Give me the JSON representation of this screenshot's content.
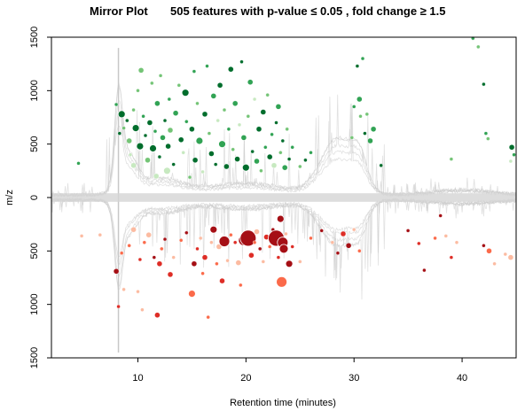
{
  "chart_data": {
    "type": "scatter",
    "title_left": "Mirror Plot",
    "title_right": "505 features with p-value ≤ 0.05 , fold change ≥ 1.5",
    "xlabel": "Retention time (minutes)",
    "ylabel": "m/z",
    "xlim": [
      2,
      45
    ],
    "ylim": [
      -1500,
      1500
    ],
    "x_ticks": [
      10,
      20,
      30,
      40
    ],
    "y_ticks": [
      {
        "value": 1500,
        "label": "1500"
      },
      {
        "value": 1000,
        "label": "1000"
      },
      {
        "value": 500,
        "label": "500"
      },
      {
        "value": 0,
        "label": "0"
      },
      {
        "value": -500,
        "label": "500"
      },
      {
        "value": -1000,
        "label": "1000"
      },
      {
        "value": -1500,
        "label": "1500"
      }
    ],
    "colors": {
      "up_dark": "#006d2c",
      "up_mid": "#31a354",
      "up_light": "#74c476",
      "up_pale": "#c7e9c0",
      "down_dark": "#a50f15",
      "down_mid": "#de2d26",
      "down_light": "#fb6a4a",
      "down_pale": "#fcbba1",
      "tic_gray": "#c8c8c8"
    },
    "series": [
      {
        "group": "up",
        "points": [
          [
            4.5,
            320,
            2,
            "up_mid"
          ],
          [
            8.0,
            870,
            2,
            "up_mid"
          ],
          [
            8.3,
            600,
            2,
            "up_dark"
          ],
          [
            8.5,
            780,
            4,
            "up_dark"
          ],
          [
            8.7,
            650,
            2,
            "up_light"
          ],
          [
            9.0,
            720,
            2,
            "up_dark"
          ],
          [
            9.2,
            530,
            3,
            "up_light"
          ],
          [
            9.3,
            400,
            2,
            "up_pale"
          ],
          [
            9.6,
            820,
            2,
            "up_light"
          ],
          [
            9.6,
            300,
            3,
            "up_pale"
          ],
          [
            9.8,
            650,
            4,
            "up_dark"
          ],
          [
            10.0,
            1000,
            2,
            "up_light"
          ],
          [
            10.2,
            480,
            4,
            "up_dark"
          ],
          [
            10.3,
            1190,
            3,
            "up_light"
          ],
          [
            10.5,
            760,
            2,
            "up_mid"
          ],
          [
            10.7,
            580,
            2,
            "up_dark"
          ],
          [
            10.9,
            350,
            3,
            "up_light"
          ],
          [
            11.1,
            700,
            3,
            "up_dark"
          ],
          [
            11.3,
            1070,
            2,
            "up_light"
          ],
          [
            11.4,
            460,
            4,
            "up_dark"
          ],
          [
            11.6,
            620,
            2,
            "up_mid"
          ],
          [
            11.7,
            200,
            3,
            "up_pale"
          ],
          [
            11.8,
            880,
            3,
            "up_mid"
          ],
          [
            12.0,
            380,
            2,
            "up_dark"
          ],
          [
            12.1,
            1140,
            2,
            "up_light"
          ],
          [
            12.3,
            560,
            3,
            "up_mid"
          ],
          [
            12.5,
            720,
            2,
            "up_dark"
          ],
          [
            12.7,
            250,
            4,
            "up_pale"
          ],
          [
            12.8,
            480,
            3,
            "up_dark"
          ],
          [
            12.9,
            920,
            2,
            "up_mid"
          ],
          [
            13.0,
            630,
            3,
            "up_light"
          ],
          [
            13.3,
            310,
            2,
            "up_dark"
          ],
          [
            13.5,
            790,
            3,
            "up_mid"
          ],
          [
            13.8,
            1050,
            2,
            "up_light"
          ],
          [
            14.0,
            540,
            3,
            "up_dark"
          ],
          [
            14.2,
            420,
            2,
            "up_pale"
          ],
          [
            14.4,
            980,
            4,
            "up_dark"
          ],
          [
            14.5,
            710,
            2,
            "up_mid"
          ],
          [
            14.8,
            190,
            2,
            "up_light"
          ],
          [
            15.0,
            640,
            3,
            "up_dark"
          ],
          [
            15.2,
            1180,
            2,
            "up_mid"
          ],
          [
            15.3,
            350,
            3,
            "up_dark"
          ],
          [
            15.5,
            880,
            2,
            "up_light"
          ],
          [
            15.7,
            530,
            4,
            "up_mid"
          ],
          [
            16.0,
            240,
            2,
            "up_pale"
          ],
          [
            16.2,
            780,
            3,
            "up_dark"
          ],
          [
            16.4,
            1230,
            2,
            "up_mid"
          ],
          [
            16.6,
            600,
            2,
            "up_light"
          ],
          [
            16.8,
            410,
            3,
            "up_dark"
          ],
          [
            17.0,
            950,
            3,
            "up_mid"
          ],
          [
            17.2,
            310,
            2,
            "up_dark"
          ],
          [
            17.4,
            720,
            2,
            "up_pale"
          ],
          [
            17.6,
            1050,
            3,
            "up_dark"
          ],
          [
            17.8,
            500,
            4,
            "up_mid"
          ],
          [
            18.0,
            820,
            2,
            "up_light"
          ],
          [
            18.2,
            290,
            3,
            "up_dark"
          ],
          [
            18.4,
            640,
            2,
            "up_mid"
          ],
          [
            18.6,
            1200,
            3,
            "up_dark"
          ],
          [
            18.8,
            450,
            2,
            "up_light"
          ],
          [
            19.0,
            880,
            3,
            "up_mid"
          ],
          [
            19.2,
            360,
            3,
            "up_dark"
          ],
          [
            19.4,
            680,
            2,
            "up_pale"
          ],
          [
            19.6,
            1270,
            2,
            "up_dark"
          ],
          [
            19.8,
            560,
            3,
            "up_mid"
          ],
          [
            20.0,
            280,
            4,
            "up_dark"
          ],
          [
            20.2,
            760,
            2,
            "up_light"
          ],
          [
            20.4,
            1080,
            3,
            "up_mid"
          ],
          [
            20.6,
            430,
            2,
            "up_dark"
          ],
          [
            20.8,
            920,
            2,
            "up_pale"
          ],
          [
            21.0,
            340,
            3,
            "up_mid"
          ],
          [
            21.2,
            640,
            3,
            "up_dark"
          ],
          [
            21.4,
            250,
            2,
            "up_light"
          ],
          [
            21.6,
            800,
            3,
            "up_dark"
          ],
          [
            21.8,
            470,
            2,
            "up_mid"
          ],
          [
            22.0,
            960,
            2,
            "up_light"
          ],
          [
            22.2,
            380,
            3,
            "up_dark"
          ],
          [
            22.4,
            590,
            2,
            "up_mid"
          ],
          [
            22.6,
            300,
            3,
            "up_pale"
          ],
          [
            22.8,
            700,
            2,
            "up_dark"
          ],
          [
            23.0,
            850,
            3,
            "up_mid"
          ],
          [
            23.2,
            420,
            2,
            "up_light"
          ],
          [
            23.4,
            530,
            2,
            "up_dark"
          ],
          [
            23.6,
            280,
            3,
            "up_mid"
          ],
          [
            23.8,
            640,
            2,
            "up_light"
          ],
          [
            24.0,
            360,
            2,
            "up_dark"
          ],
          [
            24.3,
            470,
            2,
            "up_mid"
          ],
          [
            25.0,
            290,
            2,
            "up_light"
          ],
          [
            25.5,
            350,
            2,
            "up_dark"
          ],
          [
            26.0,
            420,
            2,
            "up_mid"
          ],
          [
            29.8,
            560,
            2,
            "up_light"
          ],
          [
            30.0,
            850,
            2,
            "up_mid"
          ],
          [
            30.3,
            1230,
            2,
            "up_dark"
          ],
          [
            30.5,
            920,
            3,
            "up_mid"
          ],
          [
            30.6,
            760,
            2,
            "up_light"
          ],
          [
            30.8,
            1300,
            2,
            "up_mid"
          ],
          [
            31.0,
            600,
            2,
            "up_dark"
          ],
          [
            31.2,
            780,
            2,
            "up_light"
          ],
          [
            31.5,
            530,
            3,
            "up_mid"
          ],
          [
            31.8,
            640,
            3,
            "up_mid"
          ],
          [
            32.5,
            300,
            2,
            "up_dark"
          ],
          [
            39.0,
            360,
            2,
            "up_light"
          ],
          [
            41.0,
            1490,
            2,
            "up_mid"
          ],
          [
            41.5,
            1410,
            2,
            "up_light"
          ],
          [
            42.0,
            1060,
            2,
            "up_dark"
          ],
          [
            42.2,
            600,
            2,
            "up_mid"
          ],
          [
            42.4,
            550,
            2,
            "up_light"
          ],
          [
            44.6,
            470,
            3,
            "up_dark"
          ],
          [
            44.8,
            400,
            2,
            "up_mid"
          ],
          [
            44.5,
            340,
            2,
            "up_pale"
          ]
        ]
      },
      {
        "group": "down",
        "points": [
          [
            4.8,
            -360,
            2,
            "down_pale"
          ],
          [
            6.5,
            -350,
            2,
            "down_pale"
          ],
          [
            8.0,
            -690,
            3,
            "down_dark"
          ],
          [
            8.2,
            -1020,
            2,
            "down_mid"
          ],
          [
            8.5,
            -520,
            2,
            "down_light"
          ],
          [
            8.7,
            -860,
            2,
            "down_pale"
          ],
          [
            9.2,
            -450,
            2,
            "down_light"
          ],
          [
            9.6,
            -300,
            3,
            "down_pale"
          ],
          [
            10.0,
            -880,
            2,
            "down_pale"
          ],
          [
            10.2,
            -580,
            2,
            "down_mid"
          ],
          [
            10.4,
            -1050,
            2,
            "down_pale"
          ],
          [
            10.6,
            -420,
            2,
            "down_light"
          ],
          [
            11.0,
            -350,
            3,
            "down_pale"
          ],
          [
            11.5,
            -560,
            2,
            "down_dark"
          ],
          [
            11.8,
            -1100,
            3,
            "down_mid"
          ],
          [
            12.0,
            -620,
            3,
            "down_mid"
          ],
          [
            12.2,
            -480,
            2,
            "down_light"
          ],
          [
            12.5,
            -390,
            2,
            "down_dark"
          ],
          [
            13.0,
            -720,
            3,
            "down_mid"
          ],
          [
            13.3,
            -560,
            2,
            "down_pale"
          ],
          [
            14.0,
            -400,
            2,
            "down_light"
          ],
          [
            14.5,
            -330,
            2,
            "down_dark"
          ],
          [
            15.0,
            -900,
            4,
            "down_light"
          ],
          [
            15.2,
            -620,
            3,
            "down_dark"
          ],
          [
            15.5,
            -480,
            2,
            "down_mid"
          ],
          [
            15.8,
            -380,
            2,
            "down_pale"
          ],
          [
            16.0,
            -710,
            2,
            "down_light"
          ],
          [
            16.2,
            -560,
            3,
            "down_mid"
          ],
          [
            16.5,
            -1120,
            2,
            "down_light"
          ],
          [
            16.8,
            -420,
            2,
            "down_pale"
          ],
          [
            17.0,
            -300,
            4,
            "down_dark"
          ],
          [
            17.3,
            -620,
            2,
            "down_light"
          ],
          [
            17.5,
            -460,
            3,
            "down_pale"
          ],
          [
            17.8,
            -780,
            3,
            "down_mid"
          ],
          [
            18.0,
            -410,
            6,
            "down_dark"
          ],
          [
            18.3,
            -590,
            2,
            "down_pale"
          ],
          [
            18.6,
            -350,
            2,
            "down_light"
          ],
          [
            19.0,
            -420,
            2,
            "down_mid"
          ],
          [
            19.3,
            -610,
            3,
            "down_pale"
          ],
          [
            19.5,
            -820,
            2,
            "down_light"
          ],
          [
            19.8,
            -400,
            6,
            "down_dark"
          ],
          [
            20.2,
            -380,
            9,
            "down_dark"
          ],
          [
            20.5,
            -540,
            3,
            "down_mid"
          ],
          [
            20.8,
            -420,
            2,
            "down_light"
          ],
          [
            21.0,
            -320,
            3,
            "down_pale"
          ],
          [
            21.3,
            -480,
            2,
            "down_dark"
          ],
          [
            21.6,
            -600,
            2,
            "down_pale"
          ],
          [
            21.9,
            -370,
            3,
            "down_mid"
          ],
          [
            22.2,
            -460,
            2,
            "down_light"
          ],
          [
            22.5,
            -300,
            2,
            "down_dark"
          ],
          [
            22.8,
            -380,
            9,
            "down_dark"
          ],
          [
            23.0,
            -560,
            2,
            "down_mid"
          ],
          [
            23.2,
            -200,
            4,
            "down_dark"
          ],
          [
            23.4,
            -420,
            6,
            "down_dark"
          ],
          [
            23.5,
            -480,
            5,
            "down_dark"
          ],
          [
            23.3,
            -790,
            6,
            "down_light"
          ],
          [
            23.7,
            -340,
            2,
            "down_pale"
          ],
          [
            24.0,
            -620,
            4,
            "down_dark"
          ],
          [
            24.3,
            -460,
            2,
            "down_mid"
          ],
          [
            25.0,
            -600,
            2,
            "down_pale"
          ],
          [
            26.0,
            -380,
            2,
            "down_light"
          ],
          [
            27.0,
            -310,
            2,
            "down_dark"
          ],
          [
            28.0,
            -420,
            2,
            "down_pale"
          ],
          [
            28.5,
            -520,
            2,
            "down_dark"
          ],
          [
            29.0,
            -340,
            3,
            "down_mid"
          ],
          [
            29.5,
            -450,
            3,
            "down_dark"
          ],
          [
            30.0,
            -300,
            2,
            "down_pale"
          ],
          [
            30.5,
            -500,
            2,
            "down_light"
          ],
          [
            35.0,
            -310,
            2,
            "down_dark"
          ],
          [
            36.0,
            -430,
            2,
            "down_mid"
          ],
          [
            36.5,
            -680,
            2,
            "down_dark"
          ],
          [
            37.5,
            -380,
            2,
            "down_light"
          ],
          [
            38.0,
            -170,
            2,
            "down_dark"
          ],
          [
            38.5,
            -360,
            2,
            "down_pale"
          ],
          [
            39.0,
            -560,
            2,
            "down_mid"
          ],
          [
            39.5,
            -420,
            2,
            "down_pale"
          ],
          [
            42.0,
            -450,
            2,
            "down_dark"
          ],
          [
            42.5,
            -500,
            3,
            "down_light"
          ],
          [
            43.0,
            -620,
            2,
            "down_pale"
          ],
          [
            44.0,
            -530,
            2,
            "down_pale"
          ],
          [
            44.5,
            -560,
            3,
            "down_pale"
          ]
        ]
      }
    ]
  }
}
